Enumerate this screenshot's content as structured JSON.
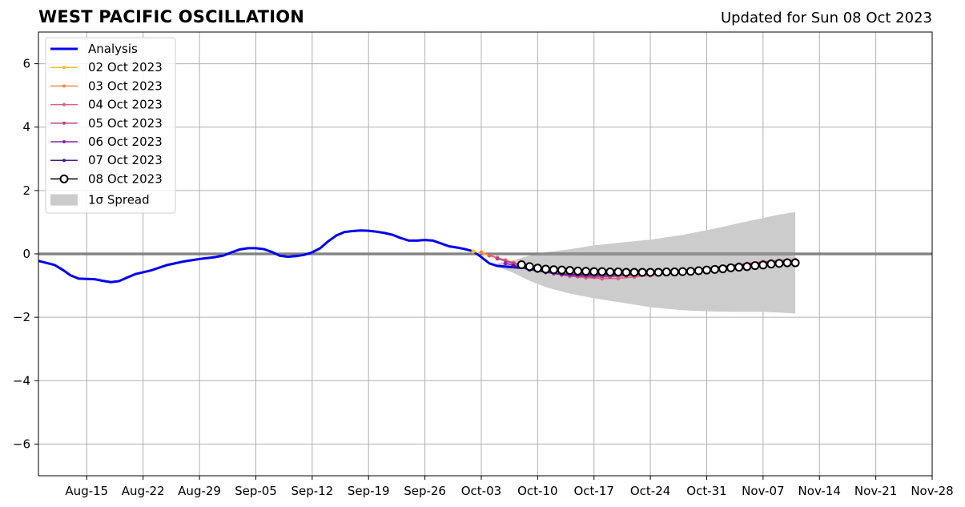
{
  "chart_data": {
    "type": "line",
    "title": "WEST PACIFIC OSCILLATION",
    "subtitle": "Updated for Sun 08 Oct 2023",
    "x_ticks": [
      "Aug-15",
      "Aug-22",
      "Aug-29",
      "Sep-05",
      "Sep-12",
      "Sep-19",
      "Sep-26",
      "Oct-03",
      "Oct-10",
      "Oct-17",
      "Oct-24",
      "Oct-31",
      "Nov-07",
      "Nov-14",
      "Nov-21",
      "Nov-28"
    ],
    "xlim": [
      "2023-08-09",
      "2023-11-28"
    ],
    "ylim": [
      -7,
      7
    ],
    "y_ticks": [
      -6,
      -4,
      -2,
      0,
      2,
      4,
      6
    ],
    "y_tick_labels": [
      "−6",
      "−4",
      "−2",
      "0",
      "2",
      "4",
      "6"
    ],
    "grid": true,
    "legend_position": "top-left",
    "zero_line": 0,
    "series": [
      {
        "name": "Analysis",
        "color": "#0000ee",
        "style": "line",
        "x": [
          "2023-08-09",
          "2023-08-11",
          "2023-08-12",
          "2023-08-13",
          "2023-08-14",
          "2023-08-16",
          "2023-08-17",
          "2023-08-18",
          "2023-08-19",
          "2023-08-20",
          "2023-08-21",
          "2023-08-23",
          "2023-08-25",
          "2023-08-27",
          "2023-08-29",
          "2023-08-31",
          "2023-09-01",
          "2023-09-02",
          "2023-09-03",
          "2023-09-04",
          "2023-09-05",
          "2023-09-06",
          "2023-09-07",
          "2023-09-08",
          "2023-09-09",
          "2023-09-10",
          "2023-09-11",
          "2023-09-12",
          "2023-09-13",
          "2023-09-14",
          "2023-09-15",
          "2023-09-16",
          "2023-09-17",
          "2023-09-18",
          "2023-09-19",
          "2023-09-20",
          "2023-09-21",
          "2023-09-22",
          "2023-09-23",
          "2023-09-24",
          "2023-09-25",
          "2023-09-26",
          "2023-09-27",
          "2023-09-28",
          "2023-09-29",
          "2023-09-30",
          "2023-10-01",
          "2023-10-02",
          "2023-10-03",
          "2023-10-04",
          "2023-10-05",
          "2023-10-06",
          "2023-10-07",
          "2023-10-08"
        ],
        "y": [
          -0.22,
          -0.35,
          -0.5,
          -0.68,
          -0.78,
          -0.8,
          -0.85,
          -0.89,
          -0.86,
          -0.75,
          -0.64,
          -0.52,
          -0.35,
          -0.24,
          -0.16,
          -0.1,
          -0.05,
          0.05,
          0.14,
          0.18,
          0.18,
          0.15,
          0.06,
          -0.06,
          -0.09,
          -0.07,
          -0.03,
          0.05,
          0.18,
          0.4,
          0.58,
          0.69,
          0.72,
          0.74,
          0.73,
          0.7,
          0.66,
          0.6,
          0.5,
          0.42,
          0.42,
          0.44,
          0.42,
          0.33,
          0.24,
          0.2,
          0.15,
          0.08,
          -0.1,
          -0.3,
          -0.38,
          -0.4,
          -0.42,
          -0.44
        ]
      },
      {
        "name": "02 Oct 2023",
        "color": "#f5b83a",
        "style": "small-markers",
        "x": [
          "2023-10-02",
          "2023-10-04",
          "2023-10-06",
          "2023-10-08",
          "2023-10-10",
          "2023-10-13",
          "2023-10-16",
          "2023-10-19",
          "2023-10-22",
          "2023-10-25"
        ],
        "y": [
          0.08,
          -0.05,
          -0.22,
          -0.38,
          -0.5,
          -0.58,
          -0.62,
          -0.64,
          -0.64,
          -0.62
        ]
      },
      {
        "name": "03 Oct 2023",
        "color": "#f08a46",
        "style": "small-markers",
        "x": [
          "2023-10-03",
          "2023-10-05",
          "2023-10-07",
          "2023-10-09",
          "2023-10-11",
          "2023-10-14",
          "2023-10-17",
          "2023-10-20",
          "2023-10-23",
          "2023-10-26"
        ],
        "y": [
          0.05,
          -0.12,
          -0.28,
          -0.44,
          -0.55,
          -0.62,
          -0.66,
          -0.67,
          -0.66,
          -0.63
        ]
      },
      {
        "name": "04 Oct 2023",
        "color": "#e0607a",
        "style": "small-markers",
        "x": [
          "2023-10-04",
          "2023-10-06",
          "2023-10-08",
          "2023-10-10",
          "2023-10-12",
          "2023-10-14",
          "2023-10-16",
          "2023-10-18",
          "2023-10-20",
          "2023-10-22",
          "2023-10-24",
          "2023-10-27",
          "2023-10-30",
          "2023-11-02",
          "2023-11-05",
          "2023-11-08",
          "2023-11-11"
        ],
        "y": [
          -0.05,
          -0.2,
          -0.35,
          -0.5,
          -0.62,
          -0.7,
          -0.75,
          -0.78,
          -0.77,
          -0.73,
          -0.68,
          -0.6,
          -0.5,
          -0.4,
          -0.3,
          -0.22,
          -0.18
        ]
      },
      {
        "name": "05 Oct 2023",
        "color": "#b9418b",
        "style": "small-markers",
        "x": [
          "2023-10-05",
          "2023-10-07",
          "2023-10-09",
          "2023-10-11",
          "2023-10-13",
          "2023-10-15",
          "2023-10-17",
          "2023-10-19",
          "2023-10-21",
          "2023-10-23",
          "2023-10-26",
          "2023-10-29",
          "2023-11-01",
          "2023-11-04",
          "2023-11-07",
          "2023-11-10"
        ],
        "y": [
          -0.15,
          -0.3,
          -0.45,
          -0.58,
          -0.66,
          -0.71,
          -0.73,
          -0.72,
          -0.69,
          -0.65,
          -0.58,
          -0.5,
          -0.42,
          -0.33,
          -0.25,
          -0.2
        ]
      },
      {
        "name": "06 Oct 2023",
        "color": "#8e22ad",
        "style": "small-markers",
        "x": [
          "2023-10-06",
          "2023-10-08",
          "2023-10-10",
          "2023-10-12",
          "2023-10-14",
          "2023-10-16",
          "2023-10-18",
          "2023-10-20",
          "2023-10-22",
          "2023-10-25",
          "2023-10-28",
          "2023-10-31",
          "2023-11-03",
          "2023-11-06",
          "2023-11-09"
        ],
        "y": [
          -0.3,
          -0.42,
          -0.54,
          -0.62,
          -0.67,
          -0.69,
          -0.69,
          -0.67,
          -0.64,
          -0.59,
          -0.53,
          -0.46,
          -0.38,
          -0.3,
          -0.24
        ]
      },
      {
        "name": "07 Oct 2023",
        "color": "#4a1a8c",
        "style": "small-markers",
        "x": [
          "2023-10-07",
          "2023-10-09",
          "2023-10-11",
          "2023-10-13",
          "2023-10-15",
          "2023-10-17",
          "2023-10-19",
          "2023-10-21",
          "2023-10-23",
          "2023-10-26",
          "2023-10-29",
          "2023-11-01",
          "2023-11-04",
          "2023-11-07",
          "2023-11-10"
        ],
        "y": [
          -0.38,
          -0.5,
          -0.58,
          -0.63,
          -0.65,
          -0.65,
          -0.64,
          -0.62,
          -0.6,
          -0.57,
          -0.52,
          -0.46,
          -0.39,
          -0.32,
          -0.27
        ]
      },
      {
        "name": "08 Oct 2023",
        "color": "#000000",
        "style": "open-circles",
        "x": [
          "2023-10-08",
          "2023-10-09",
          "2023-10-10",
          "2023-10-11",
          "2023-10-12",
          "2023-10-13",
          "2023-10-14",
          "2023-10-15",
          "2023-10-16",
          "2023-10-17",
          "2023-10-18",
          "2023-10-19",
          "2023-10-20",
          "2023-10-21",
          "2023-10-22",
          "2023-10-23",
          "2023-10-24",
          "2023-10-25",
          "2023-10-26",
          "2023-10-27",
          "2023-10-28",
          "2023-10-29",
          "2023-10-30",
          "2023-10-31",
          "2023-11-01",
          "2023-11-02",
          "2023-11-03",
          "2023-11-04",
          "2023-11-05",
          "2023-11-06",
          "2023-11-07",
          "2023-11-08",
          "2023-11-09",
          "2023-11-10",
          "2023-11-11"
        ],
        "y": [
          -0.34,
          -0.4,
          -0.45,
          -0.48,
          -0.5,
          -0.51,
          -0.52,
          -0.54,
          -0.55,
          -0.56,
          -0.56,
          -0.57,
          -0.57,
          -0.58,
          -0.58,
          -0.58,
          -0.58,
          -0.58,
          -0.57,
          -0.57,
          -0.56,
          -0.55,
          -0.53,
          -0.51,
          -0.49,
          -0.47,
          -0.44,
          -0.42,
          -0.4,
          -0.37,
          -0.35,
          -0.32,
          -0.3,
          -0.28,
          -0.28
        ]
      }
    ],
    "spread": {
      "name": "1σ Spread",
      "color": "#cccccc",
      "x": [
        "2023-10-05",
        "2023-10-07",
        "2023-10-09",
        "2023-10-11",
        "2023-10-14",
        "2023-10-17",
        "2023-10-20",
        "2023-10-24",
        "2023-10-28",
        "2023-11-01",
        "2023-11-04",
        "2023-11-07",
        "2023-11-09",
        "2023-11-11"
      ],
      "upper": [
        -0.3,
        -0.2,
        -0.05,
        0.05,
        0.15,
        0.27,
        0.35,
        0.45,
        0.6,
        0.8,
        0.97,
        1.13,
        1.24,
        1.32
      ],
      "lower": [
        -0.4,
        -0.6,
        -0.85,
        -1.05,
        -1.25,
        -1.4,
        -1.52,
        -1.68,
        -1.78,
        -1.82,
        -1.83,
        -1.83,
        -1.85,
        -1.88
      ]
    }
  }
}
